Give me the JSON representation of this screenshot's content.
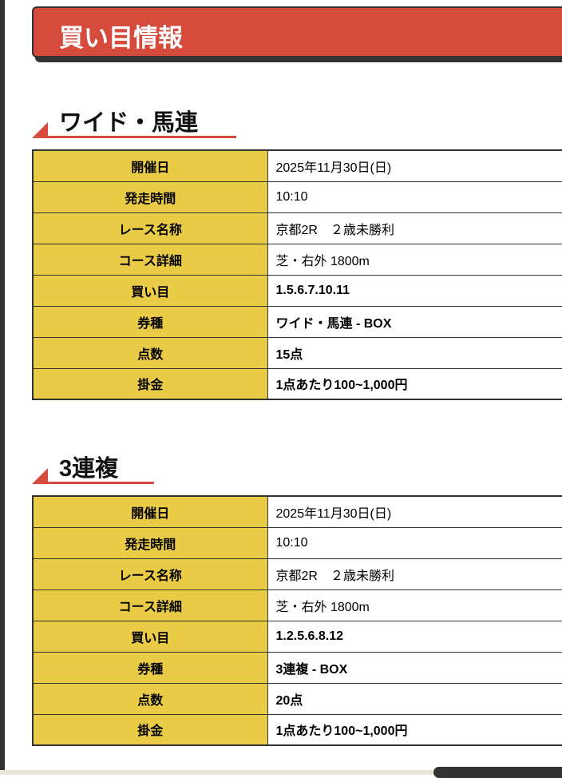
{
  "title": "買い目情報",
  "sections": [
    {
      "heading": "ワイド・馬連",
      "rows": [
        {
          "label": "開催日",
          "value": "2025年11月30日(日)",
          "bold": false
        },
        {
          "label": "発走時間",
          "value": "10:10",
          "bold": false
        },
        {
          "label": "レース名称",
          "value": "京都2R　２歳未勝利",
          "bold": false
        },
        {
          "label": "コース詳細",
          "value": "芝・右外 1800m",
          "bold": false
        },
        {
          "label": "買い目",
          "value": "1.5.6.7.10.11",
          "bold": true
        },
        {
          "label": "券種",
          "value": "ワイド・馬連 - BOX",
          "bold": true
        },
        {
          "label": "点数",
          "value": "15点",
          "bold": true
        },
        {
          "label": "掛金",
          "value": "1点あたり100~1,000円",
          "bold": true
        }
      ]
    },
    {
      "heading": "3連複",
      "rows": [
        {
          "label": "開催日",
          "value": "2025年11月30日(日)",
          "bold": false
        },
        {
          "label": "発走時間",
          "value": "10:10",
          "bold": false
        },
        {
          "label": "レース名称",
          "value": "京都2R　２歳未勝利",
          "bold": false
        },
        {
          "label": "コース詳細",
          "value": "芝・右外 1800m",
          "bold": false
        },
        {
          "label": "買い目",
          "value": "1.2.5.6.8.12",
          "bold": true
        },
        {
          "label": "券種",
          "value": "3連複 - BOX",
          "bold": true
        },
        {
          "label": "点数",
          "value": "20点",
          "bold": true
        },
        {
          "label": "掛金",
          "value": "1点あたり100~1,000円",
          "bold": true
        }
      ]
    }
  ],
  "colors": {
    "accent": "#d64b3b",
    "label_bg": "#e9cb45",
    "border": "#333333"
  }
}
